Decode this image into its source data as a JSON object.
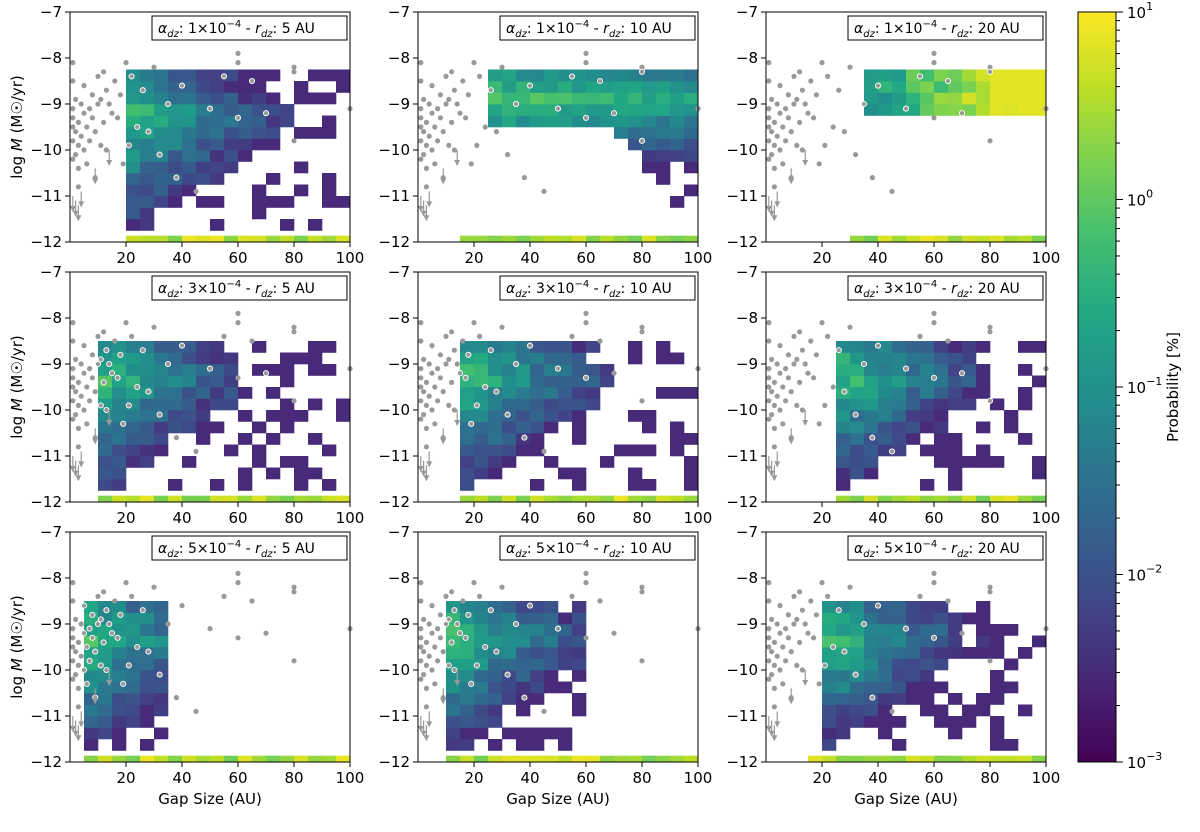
{
  "chart_data": {
    "type": "heatmap",
    "xlabel": "Gap Size (AU)",
    "ylabel_prefix": "log ",
    "ylabel_italic": "M",
    "ylabel_suffix": " (M☉/yr)",
    "x_ticks": [
      "20",
      "40",
      "60",
      "80",
      "100"
    ],
    "y_ticks": [
      "−7",
      "−8",
      "−9",
      "−10",
      "−11",
      "−12"
    ],
    "xlim": [
      0,
      100
    ],
    "ylim": [
      -12,
      -7
    ],
    "colorbar": {
      "label": "Probability [%]",
      "scale": "log",
      "range": [
        0.001,
        10
      ],
      "colormap": "viridis",
      "ticks": [
        {
          "value": 10,
          "mantissa": "10",
          "exp": "1"
        },
        {
          "value": 1,
          "mantissa": "10",
          "exp": "0"
        },
        {
          "value": 0.1,
          "mantissa": "10",
          "exp": "−1"
        },
        {
          "value": 0.01,
          "mantissa": "10",
          "exp": "−2"
        },
        {
          "value": 0.001,
          "mantissa": "10",
          "exp": "−3"
        }
      ]
    },
    "panels": [
      {
        "alpha": "1",
        "alpha_exp": "−4",
        "rdz": "5 AU"
      },
      {
        "alpha": "1",
        "alpha_exp": "−4",
        "rdz": "10 AU"
      },
      {
        "alpha": "1",
        "alpha_exp": "−4",
        "rdz": "20 AU"
      },
      {
        "alpha": "3",
        "alpha_exp": "−4",
        "rdz": "5 AU"
      },
      {
        "alpha": "3",
        "alpha_exp": "−4",
        "rdz": "10 AU"
      },
      {
        "alpha": "3",
        "alpha_exp": "−4",
        "rdz": "20 AU"
      },
      {
        "alpha": "5",
        "alpha_exp": "−4",
        "rdz": "5 AU"
      },
      {
        "alpha": "5",
        "alpha_exp": "−4",
        "rdz": "10 AU"
      },
      {
        "alpha": "5",
        "alpha_exp": "−4",
        "rdz": "20 AU"
      }
    ],
    "observations": {
      "points": [
        [
          1,
          -8.1
        ],
        [
          1,
          -8.5
        ],
        [
          1,
          -9.1
        ],
        [
          1,
          -9.3
        ],
        [
          1,
          -9.5
        ],
        [
          1,
          -9.8
        ],
        [
          1,
          -10.2
        ],
        [
          2,
          -8.9
        ],
        [
          2,
          -9.6
        ],
        [
          2,
          -10.1
        ],
        [
          3,
          -9.4
        ],
        [
          3,
          -9.9
        ],
        [
          3,
          -10.4
        ],
        [
          3,
          -10.8
        ],
        [
          4,
          -9.0
        ],
        [
          4,
          -9.7
        ],
        [
          5,
          -8.6
        ],
        [
          5,
          -9.2
        ],
        [
          5,
          -10.0
        ],
        [
          6,
          -9.5
        ],
        [
          6,
          -10.3
        ],
        [
          7,
          -9.1
        ],
        [
          7,
          -9.8
        ],
        [
          8,
          -8.8
        ],
        [
          8,
          -9.3
        ],
        [
          9,
          -9.6
        ],
        [
          9,
          -10.6
        ],
        [
          10,
          -8.4
        ],
        [
          10,
          -9.0
        ],
        [
          11,
          -8.9
        ],
        [
          11,
          -9.9
        ],
        [
          12,
          -8.3
        ],
        [
          12,
          -9.4
        ],
        [
          13,
          -8.7
        ],
        [
          13,
          -10.0
        ],
        [
          14,
          -9.0
        ],
        [
          15,
          -9.2
        ],
        [
          16,
          -8.5
        ],
        [
          17,
          -9.3
        ],
        [
          18,
          -8.8
        ],
        [
          19,
          -10.3
        ],
        [
          20,
          -8.1
        ],
        [
          21,
          -9.9
        ],
        [
          22,
          -8.4
        ],
        [
          24,
          -9.5
        ],
        [
          26,
          -8.7
        ],
        [
          28,
          -9.6
        ],
        [
          30,
          -8.2
        ],
        [
          32,
          -10.1
        ],
        [
          35,
          -9.0
        ],
        [
          38,
          -10.6
        ],
        [
          40,
          -8.6
        ],
        [
          45,
          -10.9
        ],
        [
          50,
          -9.1
        ],
        [
          55,
          -8.4
        ],
        [
          60,
          -9.3
        ],
        [
          60,
          -7.9
        ],
        [
          60,
          -8.1
        ],
        [
          65,
          -8.5
        ],
        [
          70,
          -9.2
        ],
        [
          80,
          -8.2
        ],
        [
          80,
          -8.3
        ],
        [
          80,
          -9.8
        ],
        [
          100,
          -9.1
        ]
      ],
      "upper_limits": [
        [
          1,
          -11.0
        ],
        [
          2,
          -11.1
        ],
        [
          3,
          -11.2
        ],
        [
          4,
          -10.9
        ],
        [
          9,
          -10.4
        ],
        [
          14,
          -10.0
        ]
      ]
    }
  }
}
